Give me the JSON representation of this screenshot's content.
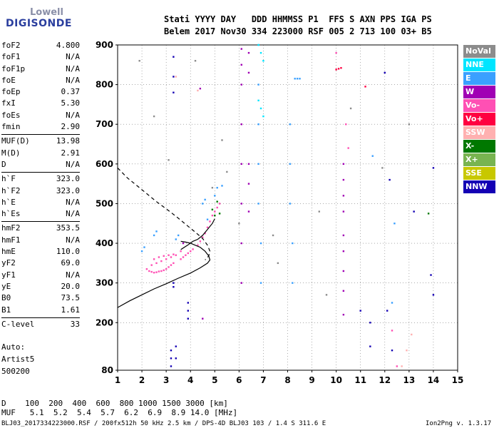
{
  "logo": {
    "line1": "Lowell",
    "line2": "DIGISONDE"
  },
  "header": {
    "row1": "Stati YYYY DAY   DDD HHMMSS P1  FFS S AXN PPS IGA PS",
    "row2": "Belem 2017 Nov30 334 223000 RSF 005 2 713 100 03+ B5"
  },
  "params": [
    [
      {
        "name": "foF2",
        "value": "4.800"
      },
      {
        "name": "foF1",
        "value": "N/A"
      },
      {
        "name": "foF1p",
        "value": "N/A"
      },
      {
        "name": "foE",
        "value": "N/A"
      },
      {
        "name": "foEp",
        "value": "0.37"
      },
      {
        "name": "fxI",
        "value": "5.30"
      },
      {
        "name": "foEs",
        "value": "N/A"
      },
      {
        "name": "fmin",
        "value": "2.90"
      }
    ],
    [
      {
        "name": "MUF(D)",
        "value": "13.98"
      },
      {
        "name": "M(D)",
        "value": "2.91"
      },
      {
        "name": "D",
        "value": "N/A"
      }
    ],
    [
      {
        "name": "h`F",
        "value": "323.0"
      },
      {
        "name": "h`F2",
        "value": "323.0"
      },
      {
        "name": "h`E",
        "value": "N/A"
      },
      {
        "name": "h`Es",
        "value": "N/A"
      }
    ],
    [
      {
        "name": "hmF2",
        "value": "353.5"
      },
      {
        "name": "hmF1",
        "value": "N/A"
      },
      {
        "name": "hmE",
        "value": "110.0"
      },
      {
        "name": "yF2",
        "value": "69.0"
      },
      {
        "name": "yF1",
        "value": "N/A"
      },
      {
        "name": "yE",
        "value": "20.0"
      },
      {
        "name": "B0",
        "value": "73.5"
      },
      {
        "name": "B1",
        "value": "1.61"
      }
    ],
    [
      {
        "name": "C-level",
        "value": "33"
      }
    ]
  ],
  "side": {
    "auto": "Auto:",
    "artist": "Artist5",
    "code": "500200"
  },
  "legend": [
    {
      "label": "NoVal",
      "color": "#8c8c8c"
    },
    {
      "label": "NNE",
      "color": "#00e5ff"
    },
    {
      "label": "E",
      "color": "#3aa0ff"
    },
    {
      "label": "W",
      "color": "#a000b4"
    },
    {
      "label": "Vo-",
      "color": "#ff50b4"
    },
    {
      "label": "Vo+",
      "color": "#ff0040"
    },
    {
      "label": "SSW",
      "color": "#ffb0b0"
    },
    {
      "label": "X-",
      "color": "#007800"
    },
    {
      "label": "X+",
      "color": "#78b450"
    },
    {
      "label": "SSE",
      "color": "#c8c800"
    },
    {
      "label": "NNW",
      "color": "#1400b4"
    }
  ],
  "footer": {
    "d_row": "D    100  200  400  600  800 1000 1500 3000 [km]",
    "muf_row": "MUF   5.1  5.2  5.4  5.7  6.2  6.9  8.9 14.0 [MHz]",
    "info": "BLJ03_2017334223000.RSF / 200fx512h 50 kHz 2.5 km / DPS-4D BLJ03 103 / 1.4 S 311.6 E",
    "version": "Ion2Png v. 1.3.17"
  },
  "chart_data": {
    "type": "scatter",
    "title": "",
    "xlabel": "",
    "ylabel": "",
    "x_ticks": [
      1,
      2,
      3,
      4,
      5,
      6,
      7,
      8,
      9,
      10,
      11,
      12,
      13,
      14,
      15
    ],
    "y_ticks": [
      80,
      200,
      300,
      400,
      500,
      600,
      700,
      800,
      900
    ],
    "xlim": [
      1,
      15
    ],
    "ylim": [
      80,
      900
    ],
    "grid": "dotted",
    "legend_position": "right",
    "series": [
      {
        "name": "Vo-",
        "color": "#ff50b4",
        "style": "points",
        "x": [
          2.2,
          2.3,
          2.4,
          2.5,
          2.6,
          2.7,
          2.8,
          2.9,
          3.0,
          3.1,
          3.2,
          3.3,
          2.5,
          2.7,
          2.9,
          3.1,
          3.3,
          3.6,
          3.7,
          3.8,
          3.9,
          4.0,
          4.1,
          4.3,
          4.4,
          4.5,
          4.6,
          4.7,
          4.8,
          4.9,
          5.0,
          5.1,
          5.2,
          2.4,
          2.6,
          2.8,
          3.0,
          3.2,
          3.4,
          3.6
        ],
        "y": [
          335,
          330,
          328,
          326,
          327,
          329,
          330,
          332,
          335,
          340,
          345,
          350,
          360,
          365,
          368,
          370,
          372,
          360,
          365,
          370,
          375,
          380,
          385,
          395,
          405,
          415,
          425,
          440,
          455,
          470,
          480,
          490,
          500,
          345,
          350,
          355,
          360,
          365,
          370,
          380
        ]
      },
      {
        "name": "E",
        "color": "#3aa0ff",
        "style": "points",
        "x": [
          2.0,
          2.1,
          2.5,
          2.6,
          3.4,
          3.5,
          4.5,
          4.6,
          4.7,
          5.0,
          5.1,
          6.8,
          6.8,
          6.8,
          6.8,
          6.8,
          6.9,
          6.9,
          8.1,
          8.1,
          8.1,
          8.2,
          8.2,
          8.3,
          8.4,
          8.5,
          11.5,
          12.4,
          12.3,
          5.3
        ],
        "y": [
          380,
          390,
          420,
          430,
          410,
          420,
          500,
          510,
          460,
          520,
          540,
          900,
          800,
          700,
          600,
          500,
          400,
          300,
          700,
          600,
          500,
          400,
          300,
          815,
          815,
          815,
          620,
          450,
          250,
          545
        ]
      },
      {
        "name": "W",
        "color": "#a000b4",
        "style": "points",
        "x": [
          6.1,
          6.1,
          6.1,
          6.1,
          6.1,
          6.1,
          6.1,
          6.1,
          6.4,
          6.4,
          6.4,
          6.4,
          6.4,
          10.3,
          10.3,
          10.3,
          10.3,
          10.3,
          10.3,
          10.3,
          10.3,
          10.3,
          4.5,
          4.4,
          3.7
        ],
        "y": [
          890,
          850,
          800,
          700,
          600,
          500,
          400,
          300,
          880,
          830,
          600,
          550,
          480,
          600,
          560,
          520,
          480,
          420,
          380,
          330,
          280,
          220,
          210,
          790,
          400
        ]
      },
      {
        "name": "NNW",
        "color": "#1400b4",
        "style": "points",
        "x": [
          3.3,
          3.3,
          3.3,
          3.3,
          3.3,
          3.2,
          3.2,
          3.2,
          3.4,
          3.4,
          3.9,
          3.9,
          3.9,
          11.4,
          11.4,
          12.2,
          12.1,
          12.3,
          13.2,
          14.0,
          14.0,
          13.9,
          12.0,
          11.0
        ],
        "y": [
          870,
          820,
          780,
          300,
          290,
          130,
          110,
          90,
          140,
          110,
          250,
          230,
          210,
          200,
          140,
          560,
          230,
          130,
          480,
          270,
          590,
          320,
          830,
          230
        ]
      },
      {
        "name": "X-",
        "color": "#007800",
        "style": "points",
        "x": [
          5.1,
          5.2,
          4.9,
          5.0,
          13.8
        ],
        "y": [
          505,
          475,
          485,
          470,
          475
        ]
      },
      {
        "name": "Vo+",
        "color": "#ff0040",
        "style": "points",
        "x": [
          10.1,
          10.0,
          10.2,
          11.2
        ],
        "y": [
          840,
          838,
          842,
          795
        ]
      },
      {
        "name": "NNE",
        "color": "#00e5ff",
        "style": "points",
        "x": [
          6.8,
          6.9,
          7.0,
          6.8,
          6.9,
          7.0
        ],
        "y": [
          900,
          880,
          860,
          760,
          740,
          720
        ]
      },
      {
        "name": "SSW",
        "color": "#ffb0b0",
        "style": "points",
        "x": [
          4.3,
          3.4,
          12.7,
          12.9,
          13.1
        ],
        "y": [
          785,
          820,
          90,
          130,
          170
        ]
      },
      {
        "name": "NoVal",
        "color": "#8c8c8c",
        "style": "points",
        "x": [
          1.9,
          2.5,
          3.1,
          4.2,
          4.9,
          5.3,
          5.5,
          6.0,
          7.4,
          7.6,
          9.3,
          9.6,
          10.6,
          11.9,
          13.0
        ],
        "y": [
          860,
          720,
          610,
          860,
          540,
          660,
          580,
          450,
          420,
          350,
          480,
          270,
          740,
          590,
          700
        ]
      },
      {
        "name": "Vo-",
        "color": "#ff50b4",
        "style": "points",
        "x": [
          10.0,
          10.4,
          10.5,
          12.3,
          12.5
        ],
        "y": [
          880,
          700,
          640,
          180,
          90
        ]
      },
      {
        "name": "profile",
        "color": "#000000",
        "style": "solid",
        "x": [
          1.0,
          1.5,
          2.0,
          2.5,
          3.0,
          3.5,
          4.0,
          4.4,
          4.7,
          4.8,
          4.75,
          4.6,
          4.4,
          4.2,
          4.0,
          3.8,
          3.6
        ],
        "y": [
          238,
          255,
          270,
          285,
          298,
          312,
          325,
          338,
          350,
          358,
          368,
          380,
          390,
          395,
          400,
          403,
          405
        ]
      },
      {
        "name": "profile-upper",
        "color": "#000000",
        "style": "solid",
        "x": [
          3.6,
          3.9,
          4.1,
          4.3,
          4.5,
          4.7,
          4.9,
          5.0
        ],
        "y": [
          384,
          396,
          405,
          410,
          420,
          435,
          450,
          462
        ]
      },
      {
        "name": "profile-topside",
        "color": "#000000",
        "style": "dashed",
        "x": [
          1.0,
          1.4,
          1.8,
          2.2,
          2.6,
          3.0,
          3.4,
          3.8,
          4.2,
          4.5,
          4.7,
          4.8,
          4.75,
          4.6
        ],
        "y": [
          590,
          565,
          545,
          525,
          505,
          487,
          468,
          448,
          428,
          412,
          395,
          380,
          368,
          358
        ]
      }
    ]
  }
}
